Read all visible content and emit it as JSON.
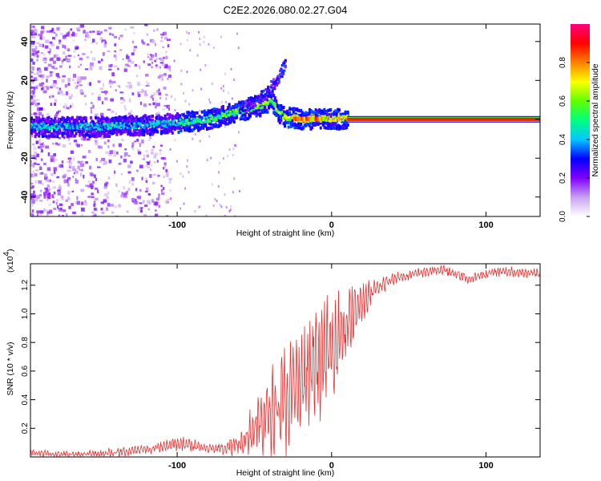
{
  "figure": {
    "title": "C2E2.2026.080.02.27.G04"
  },
  "colorbar": {
    "label": "Normalized spectral amplitude",
    "ticks": [
      "0.0",
      "0.2",
      "0.4",
      "0.6",
      "0.8"
    ],
    "tick_values": [
      0.0,
      0.2,
      0.4,
      0.6,
      0.8
    ],
    "range": [
      0,
      1
    ],
    "colors": [
      "#ffffff",
      "#c8a0f0",
      "#8000ff",
      "#0000ff",
      "#00c8ff",
      "#00ff80",
      "#60ff00",
      "#ffff00",
      "#ff8000",
      "#ff0000",
      "#ff0080"
    ]
  },
  "chart_data": [
    {
      "type": "heatmap",
      "title": "C2E2.2026.080.02.27.G04",
      "xlabel": "Height of straight line (km)",
      "ylabel": "Frequency (Hz)",
      "xlim": [
        -195,
        135
      ],
      "ylim": [
        -50,
        49
      ],
      "xticks": [
        -100,
        0,
        100
      ],
      "xtick_labels": [
        "-100",
        "0",
        "100"
      ],
      "yticks": [
        -40,
        -20,
        0,
        20,
        40
      ],
      "ytick_labels": [
        "-40",
        "-20",
        "0",
        "20",
        "40"
      ],
      "ridge": {
        "description": "frequency of the dominant signal vs height",
        "x": [
          -195,
          -150,
          -120,
          -100,
          -80,
          -65,
          -55,
          -45,
          -40,
          -35,
          -30,
          -20,
          -10,
          0,
          10,
          135
        ],
        "freq": [
          -4,
          -4,
          -3,
          -2,
          0,
          3,
          5,
          7,
          10,
          3,
          1,
          0,
          0,
          0,
          0,
          0
        ]
      },
      "branch": {
        "description": "upward branch",
        "x": [
          -60,
          -50,
          -45,
          -40,
          -35,
          -30
        ],
        "freq": [
          6,
          9,
          12,
          16,
          21,
          29
        ]
      },
      "strong_segment": {
        "x": [
          -25,
          -5
        ],
        "freq": 0
      },
      "saturated_band": {
        "x": [
          10,
          135
        ],
        "freq": 0
      }
    },
    {
      "type": "line",
      "title": "",
      "xlabel": "Height of straight line (km)",
      "ylabel": "SNR (10 * v/v)",
      "yscale_label": "(x10",
      "yscale_exp": "4",
      "yscale_suffix": ")",
      "xlim": [
        -195,
        135
      ],
      "ylim": [
        0,
        1.35
      ],
      "xticks": [
        -100,
        0,
        100
      ],
      "xtick_labels": [
        "-100",
        "0",
        "100"
      ],
      "yticks": [
        0.2,
        0.4,
        0.6,
        0.8,
        1.0,
        1.2
      ],
      "ytick_labels": [
        "0.2",
        "0.4",
        "0.6",
        "0.8",
        "1.0",
        "1.2"
      ],
      "series": [
        {
          "name": "SNR",
          "color": "#e83030",
          "x": [
            -195,
            -180,
            -160,
            -140,
            -120,
            -100,
            -90,
            -80,
            -70,
            -60,
            -50,
            -40,
            -30,
            -20,
            -10,
            0,
            10,
            20,
            30,
            40,
            50,
            60,
            70,
            80,
            90,
            100,
            110,
            120,
            135
          ],
          "trend": [
            0.03,
            0.02,
            0.02,
            0.03,
            0.05,
            0.09,
            0.08,
            0.06,
            0.06,
            0.1,
            0.2,
            0.3,
            0.4,
            0.5,
            0.62,
            0.78,
            0.93,
            1.08,
            1.18,
            1.25,
            1.27,
            1.29,
            1.31,
            1.28,
            1.24,
            1.28,
            1.3,
            1.29,
            1.28
          ],
          "amplitude": [
            0.02,
            0.02,
            0.02,
            0.03,
            0.03,
            0.05,
            0.04,
            0.03,
            0.04,
            0.08,
            0.15,
            0.25,
            0.32,
            0.35,
            0.33,
            0.3,
            0.22,
            0.12,
            0.06,
            0.04,
            0.03,
            0.03,
            0.03,
            0.03,
            0.03,
            0.03,
            0.03,
            0.03,
            0.03
          ]
        }
      ]
    }
  ]
}
